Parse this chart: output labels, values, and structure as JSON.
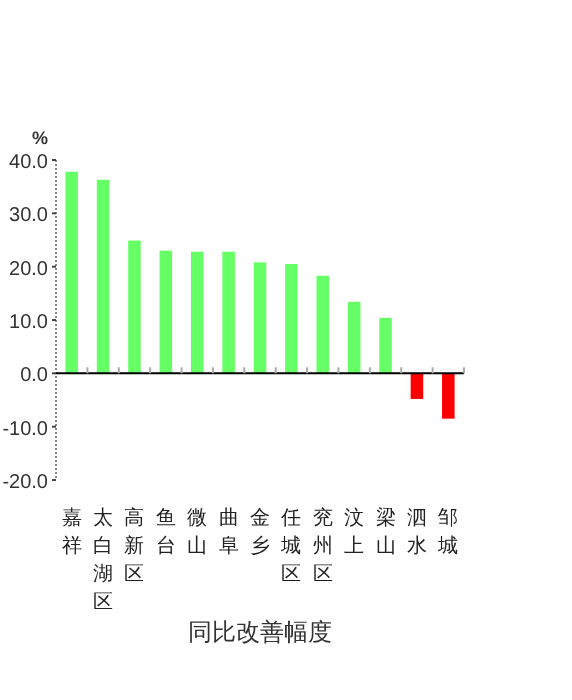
{
  "chart_data": {
    "type": "bar",
    "ylabel": "%",
    "xlabel": "同比改善幅度",
    "categories": [
      "嘉祥",
      "太白湖区",
      "高新区",
      "鱼台",
      "微山",
      "曲阜",
      "金乡",
      "任城区",
      "兖州区",
      "汶上",
      "梁山",
      "泗水",
      "邹城"
    ],
    "values": [
      37.8,
      36.3,
      24.9,
      23.0,
      22.8,
      22.8,
      20.8,
      20.5,
      18.3,
      13.4,
      10.4,
      -4.8,
      -8.5
    ],
    "colors": [
      "#66ff66",
      "#66ff66",
      "#66ff66",
      "#66ff66",
      "#66ff66",
      "#66ff66",
      "#66ff66",
      "#66ff66",
      "#66ff66",
      "#66ff66",
      "#66ff66",
      "#ff0000",
      "#ff0000"
    ],
    "ylim": [
      -20,
      40
    ],
    "yticks": [
      {
        "value": -20,
        "label": "-20.0"
      },
      {
        "value": -10,
        "label": "-10.0"
      },
      {
        "value": 0,
        "label": "0.0"
      },
      {
        "value": 10,
        "label": "10.0"
      },
      {
        "value": 20,
        "label": "20.0"
      },
      {
        "value": 30,
        "label": "30.0"
      },
      {
        "value": 40,
        "label": "40.0"
      }
    ]
  }
}
